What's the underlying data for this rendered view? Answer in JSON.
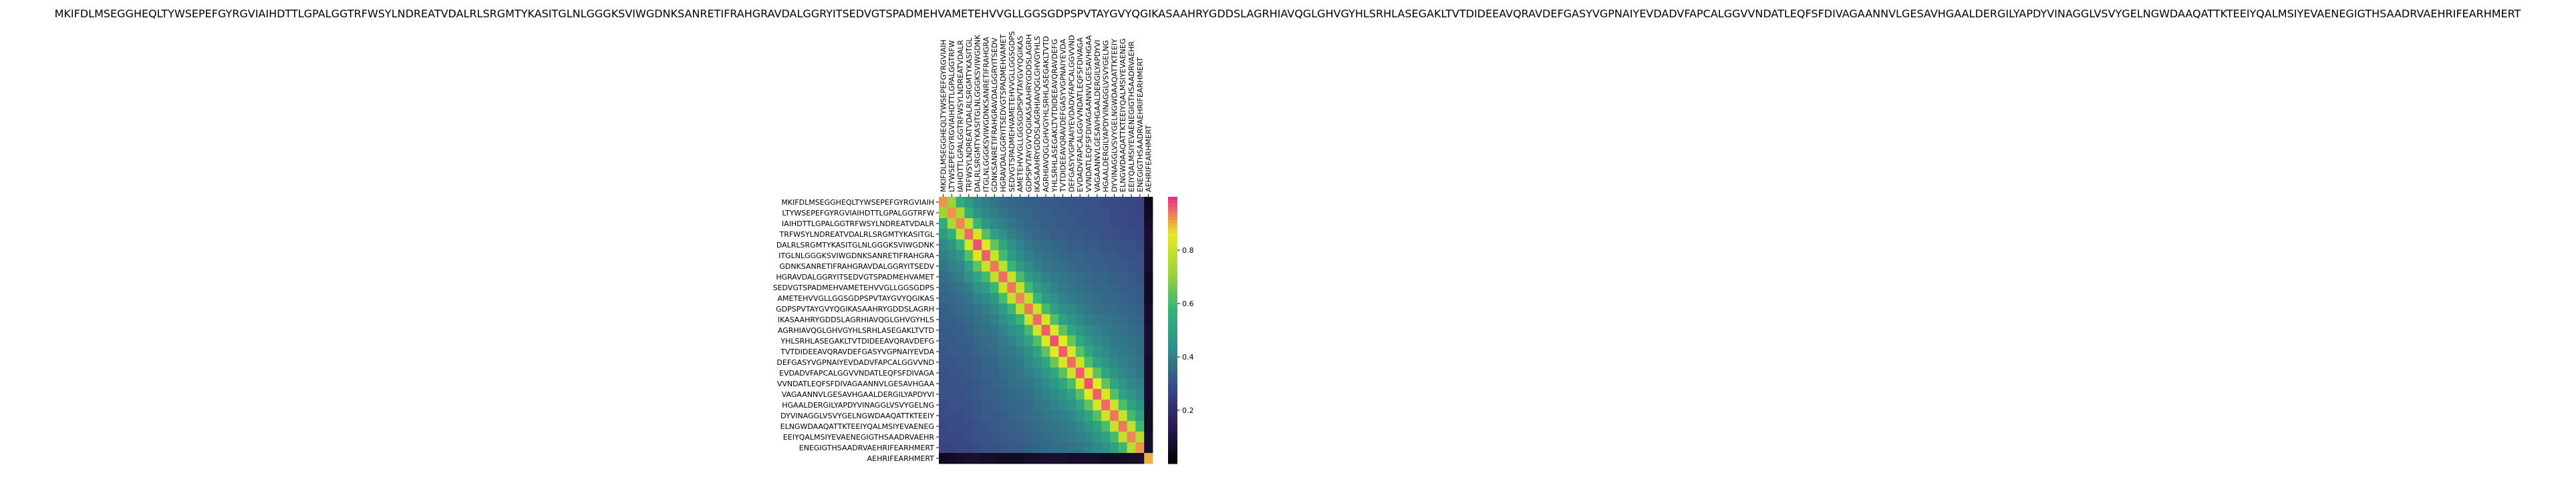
{
  "chart_data": {
    "type": "heatmap",
    "title": "MKIFDLMSEGGHEQLTYWSEPEFGYRGVIAIHDTTLGPALGGTRFWSYLNDREATVDALRLSRGMTYKASITGLNLGGGKSVIWGDNKSANRETIFRAHGRAVDALGGRYITSEDVGTSPADMEHVAMETEHVVGLLGGSGDPSPVTAYGVYQGIKASAAHRYGDDSLAGRHIAVQGLGHVGYHLSRHLASEGAKLTVTDIDEEAVQRAVDEFGASYVGPNAIYEVDADVFAPCALGGVVNDATLEQFSFDIVAGAANNVLGESAVHGAALDERGILYAPDYVINAGGLVSVYGELNGWDAAQATTKTEEIYQALMSIYEVAENEGIGTHSAADRVAEHRIFEARHMERT",
    "xlabel": "",
    "ylabel": "",
    "colormap": [
      "#000000",
      "#2b1a56",
      "#3a4a87",
      "#2f8c8a",
      "#2fb37a",
      "#9cd33a",
      "#e8ea20",
      "#f0288a"
    ],
    "colorbar": {
      "min": 0.0,
      "max": 1.0,
      "ticks": [
        "0.2",
        "0.4",
        "0.6",
        "0.8"
      ],
      "tick_values": [
        0.2,
        0.4,
        0.6,
        0.8
      ]
    },
    "row_labels": [
      "MKIFDLMSEGGHEQLTYWSEPEFGYRGVIAIH",
      "LTYWSEPEFGYRGVIAIHDTTLGPALGGTRFW",
      "IAIHDTTLGPALGGTRFWSYLNDREATVDALR",
      "TRFWSYLNDREATVDALRLSRGMTYKASITGL",
      "DALRLSRGMTYKASITGLNLGGGKSVIWGDNK",
      "ITGLNLGGGKSVIWGDNKSANRETIFRAHGRA",
      "GDNKSANRETIFRAHGRAVDALGGRYITSEDV",
      "HGRAVDALGGRYITSEDVGTSPADMEHVAMET",
      "SEDVGTSPADMEHVAMETEHVVGLLGGSGDPS",
      "AMETEHVVGLLGGSGDPSPVTAYGVYQGIKAS",
      "GDPSPVTAYGVYQGIKASAAHRYGDDSLAGRH",
      "IKASAAHRYGDDSLAGRHIAVQGLGHVGYHLS",
      "AGRHIAVQGLGHVGYHLSRHLASEGAKLTVTD",
      "YHLSRHLASEGAKLTVTDIDEEAVQRAVDEFG",
      "TVTDIDEEAVQRAVDEFGASYVGPNAIYEVDA",
      "DEFGASYVGPNAIYEVDADVFAPCALGGVVND",
      "EVDADVFAPCALGGVVNDATLEQFSFDIVAGA",
      "VVNDATLEQFSFDIVAGAANNVLGESAVHGAA",
      "VAGAANNVLGESAVHGAALDERGILYAPDYVI",
      "HGAALDERGILYAPDYVINAGGLVSVYGELNG",
      "DYVINAGGLVSVYGELNGWDAAQATTKTEEIY",
      "ELNGWDAAQATTKTEEIYQALMSIYEVAENEG",
      "EEIYQALMSIYEVAENEGIGTHSAADRVAEHR",
      "ENEGIGTHSAADRVAEHRIFEARHMERT",
      "AEHRIFEARHMERT"
    ],
    "col_labels": [
      "MKIFDLMSEGGHEQLTYWSEPEFGYRGVIAIH",
      "LTYWSEPEFGYRGVIAIHDTTLGPALGGTRFW",
      "IAIHDTTLGPALGGTRFWSYLNDREATVDALR",
      "TRFWSYLNDREATVDALRLSRGMTYKASITGL",
      "DALRLSRGMTYKASITGLNLGGGKSVIWGDNK",
      "ITGLNLGGGKSVIWGDNKSANRETIFRAHGRA",
      "GDNKSANRETIFRAHGRAVDALGGRYITSEDV",
      "HGRAVDALGGRYITSEDVGTSPADMEHVAMET",
      "SEDVGTSPADMEHVAMETEHVVGLLGGSGDPS",
      "AMETEHVVGLLGGSGDPSPVTAYGVYQGIKAS",
      "GDPSPVTAYGVYQGIKASAAHRYGDDSLAGRH",
      "IKASAAHRYGDDSLAGRHIAVQGLGHVGYHLS",
      "AGRHIAVQGLGHVGYHLSRHLASEGAKLTVTD",
      "YHLSRHLASEGAKLTVTDIDEEAVQRAVDEFG",
      "TVTDIDEEAVQRAVDEFGASYVGPNAIYEVDA",
      "DEFGASYVGPNAIYEVDADVFAPCALGGVVND",
      "EVDADVFAPCALGGVVNDATLEQFSFDIVAGA",
      "VVNDATLEQFSFDIVAGAANNVLGESAVHGAA",
      "VAGAANNVLGESAVHGAALDERGILYAPDYVI",
      "HGAALDERGILYAPDYVINAGGLVSVYGELNG",
      "DYVINAGGLVSVYGELNGWDAAQATTKTEEIY",
      "ELNGWDAAQATTKTEEIYQALMSIYEVAENEG",
      "EEIYQALMSIYEVAENEGIGTHSAADRVAEHR",
      "ENEGIGTHSAADRVAEHRIFEARHMERT",
      "AEHRIFEARHMERT"
    ],
    "values": [
      [
        0.92,
        0.72,
        0.55,
        0.48,
        0.42,
        0.4,
        0.38,
        0.36,
        0.35,
        0.34,
        0.33,
        0.33,
        0.32,
        0.32,
        0.31,
        0.31,
        0.3,
        0.3,
        0.3,
        0.29,
        0.29,
        0.28,
        0.28,
        0.27,
        0.05
      ],
      [
        0.72,
        0.92,
        0.74,
        0.56,
        0.46,
        0.42,
        0.4,
        0.38,
        0.36,
        0.35,
        0.34,
        0.33,
        0.33,
        0.32,
        0.32,
        0.31,
        0.31,
        0.3,
        0.3,
        0.3,
        0.29,
        0.29,
        0.28,
        0.27,
        0.06
      ],
      [
        0.55,
        0.74,
        0.93,
        0.78,
        0.58,
        0.47,
        0.42,
        0.4,
        0.38,
        0.36,
        0.35,
        0.34,
        0.33,
        0.33,
        0.32,
        0.32,
        0.31,
        0.31,
        0.3,
        0.3,
        0.29,
        0.29,
        0.28,
        0.28,
        0.07
      ],
      [
        0.48,
        0.56,
        0.78,
        0.95,
        0.82,
        0.62,
        0.5,
        0.44,
        0.4,
        0.38,
        0.36,
        0.35,
        0.34,
        0.33,
        0.33,
        0.32,
        0.32,
        0.31,
        0.31,
        0.3,
        0.3,
        0.29,
        0.29,
        0.28,
        0.08
      ],
      [
        0.42,
        0.46,
        0.58,
        0.82,
        0.97,
        0.84,
        0.64,
        0.52,
        0.45,
        0.41,
        0.38,
        0.37,
        0.36,
        0.35,
        0.34,
        0.33,
        0.33,
        0.32,
        0.32,
        0.31,
        0.31,
        0.3,
        0.3,
        0.29,
        0.08
      ],
      [
        0.4,
        0.42,
        0.47,
        0.62,
        0.84,
        0.96,
        0.8,
        0.6,
        0.49,
        0.43,
        0.4,
        0.38,
        0.37,
        0.36,
        0.35,
        0.34,
        0.34,
        0.33,
        0.33,
        0.32,
        0.32,
        0.31,
        0.3,
        0.3,
        0.07
      ],
      [
        0.38,
        0.4,
        0.42,
        0.5,
        0.64,
        0.8,
        0.94,
        0.78,
        0.58,
        0.48,
        0.43,
        0.4,
        0.38,
        0.37,
        0.36,
        0.35,
        0.34,
        0.34,
        0.33,
        0.33,
        0.32,
        0.32,
        0.31,
        0.3,
        0.07
      ],
      [
        0.36,
        0.38,
        0.4,
        0.44,
        0.52,
        0.6,
        0.78,
        0.95,
        0.8,
        0.6,
        0.49,
        0.44,
        0.41,
        0.39,
        0.38,
        0.37,
        0.36,
        0.35,
        0.34,
        0.34,
        0.33,
        0.33,
        0.32,
        0.31,
        0.06
      ],
      [
        0.35,
        0.36,
        0.38,
        0.4,
        0.45,
        0.49,
        0.58,
        0.8,
        0.94,
        0.79,
        0.59,
        0.49,
        0.44,
        0.41,
        0.39,
        0.38,
        0.37,
        0.36,
        0.35,
        0.35,
        0.34,
        0.33,
        0.33,
        0.32,
        0.06
      ],
      [
        0.34,
        0.35,
        0.36,
        0.38,
        0.41,
        0.43,
        0.48,
        0.6,
        0.79,
        0.93,
        0.78,
        0.58,
        0.48,
        0.44,
        0.41,
        0.39,
        0.38,
        0.37,
        0.36,
        0.35,
        0.35,
        0.34,
        0.33,
        0.32,
        0.06
      ],
      [
        0.33,
        0.34,
        0.35,
        0.36,
        0.38,
        0.4,
        0.43,
        0.49,
        0.59,
        0.78,
        0.94,
        0.8,
        0.6,
        0.5,
        0.45,
        0.42,
        0.4,
        0.38,
        0.37,
        0.36,
        0.36,
        0.35,
        0.34,
        0.33,
        0.07
      ],
      [
        0.33,
        0.33,
        0.34,
        0.35,
        0.37,
        0.38,
        0.4,
        0.44,
        0.49,
        0.58,
        0.8,
        0.95,
        0.82,
        0.62,
        0.51,
        0.46,
        0.42,
        0.4,
        0.39,
        0.38,
        0.37,
        0.36,
        0.35,
        0.34,
        0.07
      ],
      [
        0.32,
        0.33,
        0.33,
        0.34,
        0.36,
        0.37,
        0.38,
        0.41,
        0.44,
        0.48,
        0.6,
        0.82,
        0.96,
        0.84,
        0.64,
        0.52,
        0.47,
        0.43,
        0.41,
        0.39,
        0.38,
        0.37,
        0.36,
        0.35,
        0.08
      ],
      [
        0.32,
        0.32,
        0.33,
        0.33,
        0.35,
        0.36,
        0.37,
        0.39,
        0.41,
        0.44,
        0.5,
        0.62,
        0.84,
        0.97,
        0.85,
        0.65,
        0.53,
        0.47,
        0.43,
        0.41,
        0.39,
        0.38,
        0.37,
        0.36,
        0.08
      ],
      [
        0.31,
        0.32,
        0.32,
        0.33,
        0.34,
        0.35,
        0.36,
        0.38,
        0.39,
        0.41,
        0.45,
        0.51,
        0.64,
        0.85,
        0.96,
        0.83,
        0.63,
        0.52,
        0.46,
        0.43,
        0.4,
        0.39,
        0.38,
        0.36,
        0.08
      ],
      [
        0.31,
        0.31,
        0.32,
        0.32,
        0.33,
        0.34,
        0.35,
        0.37,
        0.38,
        0.39,
        0.42,
        0.46,
        0.52,
        0.65,
        0.83,
        0.95,
        0.81,
        0.61,
        0.51,
        0.46,
        0.42,
        0.4,
        0.39,
        0.37,
        0.07
      ],
      [
        0.3,
        0.31,
        0.31,
        0.32,
        0.33,
        0.34,
        0.34,
        0.36,
        0.37,
        0.38,
        0.4,
        0.42,
        0.47,
        0.53,
        0.63,
        0.81,
        0.96,
        0.83,
        0.63,
        0.52,
        0.46,
        0.42,
        0.4,
        0.38,
        0.07
      ],
      [
        0.3,
        0.3,
        0.31,
        0.31,
        0.32,
        0.33,
        0.34,
        0.35,
        0.36,
        0.37,
        0.38,
        0.4,
        0.43,
        0.47,
        0.52,
        0.61,
        0.83,
        0.97,
        0.85,
        0.64,
        0.52,
        0.46,
        0.42,
        0.4,
        0.07
      ],
      [
        0.3,
        0.3,
        0.3,
        0.31,
        0.32,
        0.33,
        0.33,
        0.34,
        0.35,
        0.36,
        0.37,
        0.39,
        0.41,
        0.43,
        0.46,
        0.51,
        0.63,
        0.85,
        0.96,
        0.83,
        0.62,
        0.51,
        0.46,
        0.42,
        0.07
      ],
      [
        0.29,
        0.3,
        0.3,
        0.3,
        0.31,
        0.32,
        0.33,
        0.34,
        0.35,
        0.35,
        0.36,
        0.38,
        0.39,
        0.41,
        0.43,
        0.46,
        0.52,
        0.64,
        0.83,
        0.95,
        0.81,
        0.61,
        0.51,
        0.45,
        0.06
      ],
      [
        0.29,
        0.29,
        0.29,
        0.3,
        0.31,
        0.32,
        0.32,
        0.33,
        0.34,
        0.35,
        0.36,
        0.37,
        0.38,
        0.39,
        0.4,
        0.42,
        0.46,
        0.52,
        0.62,
        0.81,
        0.94,
        0.8,
        0.6,
        0.5,
        0.06
      ],
      [
        0.28,
        0.29,
        0.29,
        0.29,
        0.3,
        0.31,
        0.32,
        0.33,
        0.33,
        0.34,
        0.35,
        0.36,
        0.37,
        0.38,
        0.39,
        0.4,
        0.42,
        0.46,
        0.51,
        0.61,
        0.8,
        0.94,
        0.79,
        0.59,
        0.06
      ],
      [
        0.28,
        0.28,
        0.28,
        0.29,
        0.3,
        0.3,
        0.31,
        0.32,
        0.33,
        0.33,
        0.34,
        0.35,
        0.36,
        0.37,
        0.38,
        0.39,
        0.4,
        0.42,
        0.46,
        0.51,
        0.6,
        0.79,
        0.93,
        0.77,
        0.07
      ],
      [
        0.27,
        0.27,
        0.28,
        0.28,
        0.29,
        0.3,
        0.3,
        0.31,
        0.32,
        0.32,
        0.33,
        0.34,
        0.35,
        0.36,
        0.36,
        0.37,
        0.38,
        0.4,
        0.42,
        0.45,
        0.5,
        0.59,
        0.77,
        0.92,
        0.08
      ],
      [
        0.05,
        0.06,
        0.07,
        0.08,
        0.08,
        0.07,
        0.07,
        0.06,
        0.06,
        0.06,
        0.07,
        0.07,
        0.08,
        0.08,
        0.08,
        0.07,
        0.07,
        0.07,
        0.07,
        0.06,
        0.06,
        0.06,
        0.07,
        0.08,
        0.9
      ]
    ]
  }
}
